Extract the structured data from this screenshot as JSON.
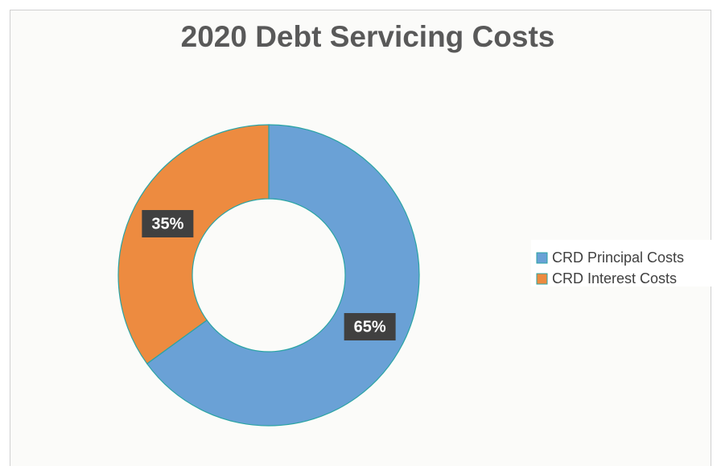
{
  "chart_data": {
    "type": "donut",
    "title": "2020 Debt Servicing Costs",
    "categories": [
      "CRD Principal Costs",
      "CRD Interest Costs"
    ],
    "values": [
      65,
      35
    ],
    "value_labels": [
      "65%",
      "35%"
    ],
    "colors": [
      "#6aa1d6",
      "#ed8b40"
    ],
    "legend": "right"
  }
}
